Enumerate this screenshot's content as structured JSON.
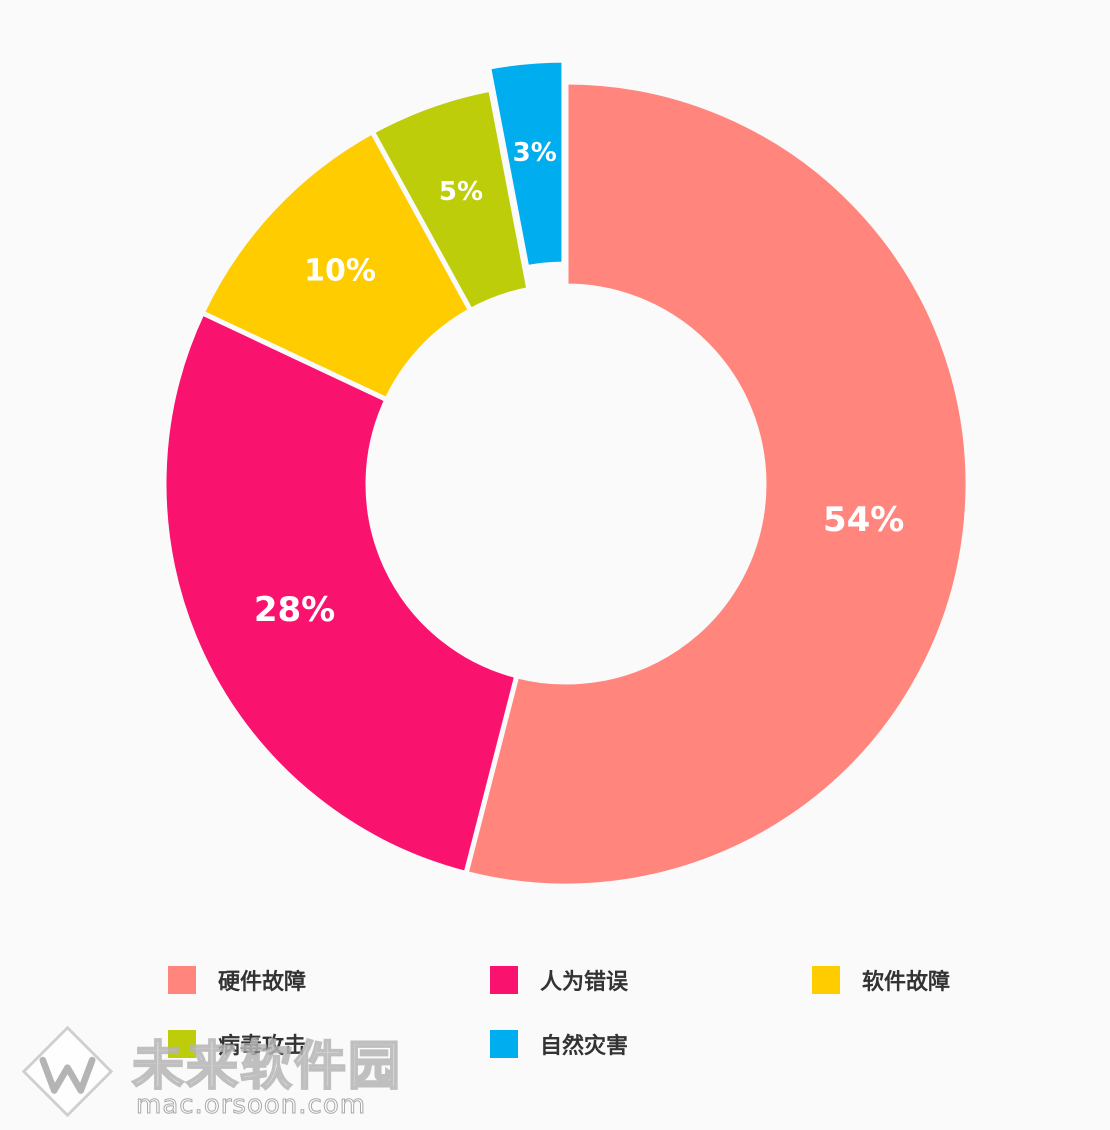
{
  "chart_data": {
    "type": "pie",
    "title": "",
    "categories": [
      "硬件故障",
      "人为错误",
      "软件故障",
      "病毒攻击",
      "自然灾害"
    ],
    "values": [
      54,
      28,
      10,
      5,
      3
    ],
    "labels": [
      "54%",
      "28%",
      "10%",
      "5%",
      "3%"
    ],
    "colors": [
      "#FF857D",
      "#FA126F",
      "#FFCC00",
      "#BDCD0A",
      "#00AEEF"
    ],
    "donut": true,
    "legend_position": "bottom",
    "exploded": [
      "自然灾害"
    ]
  },
  "legend": {
    "items": [
      {
        "label": "硬件故障",
        "color": "#FF857D"
      },
      {
        "label": "人为错误",
        "color": "#FA126F"
      },
      {
        "label": "软件故障",
        "color": "#FFCC00"
      },
      {
        "label": "病毒攻击",
        "color": "#BDCD0A"
      },
      {
        "label": "自然灾害",
        "color": "#00AEEF"
      }
    ]
  },
  "watermark": {
    "title": "未来软件园",
    "url": "mac.orsoon.com",
    "logo_icon": "w-logo-icon"
  }
}
